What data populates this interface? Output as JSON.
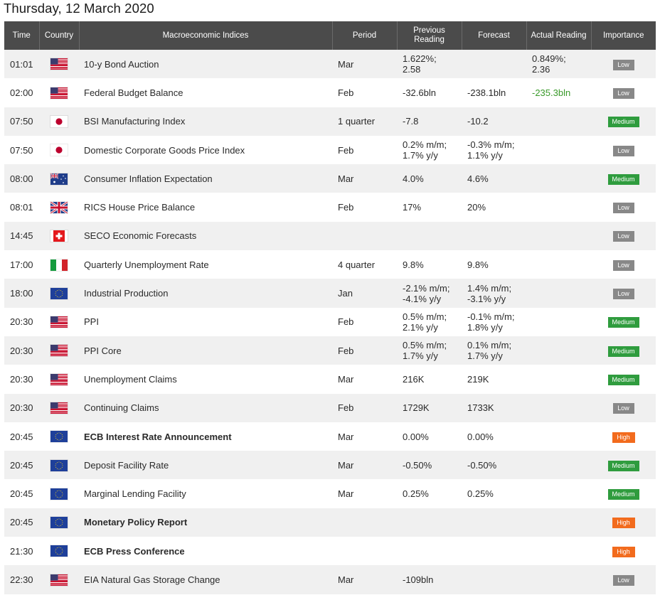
{
  "page": {
    "date_title": "Thursday, 12 March 2020"
  },
  "columns": {
    "time": "Time",
    "country": "Country",
    "indices": "Macroeconomic Indices",
    "period": "Period",
    "previous": "Previous Reading",
    "forecast": "Forecast",
    "actual": "Actual Reading",
    "importance": "Importance"
  },
  "colors": {
    "low": "#888888",
    "medium": "#2f9c3e",
    "high": "#f26b1d",
    "header": "#4b4b4b",
    "actual_positive": "#3a9a2a"
  },
  "rows": [
    {
      "time": "01:01",
      "flag": "us-flag-icon",
      "indicator": "10-y Bond Auction",
      "bold": false,
      "period": "Mar",
      "previous": "1.622%; 2.58",
      "forecast": "",
      "actual": "0.849%; 2.36",
      "actual_color": "",
      "importance": "Low"
    },
    {
      "time": "02:00",
      "flag": "us-flag-icon",
      "indicator": "Federal Budget Balance",
      "bold": false,
      "period": "Feb",
      "previous": "-32.6bln",
      "forecast": "-238.1bln",
      "actual": "-235.3bln",
      "actual_color": "green",
      "importance": "Low"
    },
    {
      "time": "07:50",
      "flag": "jp-flag-icon",
      "indicator": "BSI Manufacturing Index",
      "bold": false,
      "period": "1 quarter",
      "previous": "-7.8",
      "forecast": "-10.2",
      "actual": "",
      "actual_color": "",
      "importance": "Medium"
    },
    {
      "time": "07:50",
      "flag": "jp-flag-icon",
      "indicator": "Domestic Corporate Goods Price Index",
      "bold": false,
      "period": "Feb",
      "previous": "0.2% m/m; 1.7% y/y",
      "forecast": "-0.3% m/m; 1.1% y/y",
      "actual": "",
      "actual_color": "",
      "importance": "Low"
    },
    {
      "time": "08:00",
      "flag": "au-flag-icon",
      "indicator": "Consumer Inflation Expectation",
      "bold": false,
      "period": "Mar",
      "previous": "4.0%",
      "forecast": "4.6%",
      "actual": "",
      "actual_color": "",
      "importance": "Medium"
    },
    {
      "time": "08:01",
      "flag": "uk-flag-icon",
      "indicator": "RICS House Price Balance",
      "bold": false,
      "period": "Feb",
      "previous": "17%",
      "forecast": "20%",
      "actual": "",
      "actual_color": "",
      "importance": "Low"
    },
    {
      "time": "14:45",
      "flag": "ch-flag-icon",
      "indicator": "SECO Economic Forecasts",
      "bold": false,
      "period": "",
      "previous": "",
      "forecast": "",
      "actual": "",
      "actual_color": "",
      "importance": "Low"
    },
    {
      "time": "17:00",
      "flag": "it-flag-icon",
      "indicator": "Quarterly Unemployment Rate",
      "bold": false,
      "period": "4 quarter",
      "previous": "9.8%",
      "forecast": "9.8%",
      "actual": "",
      "actual_color": "",
      "importance": "Low"
    },
    {
      "time": "18:00",
      "flag": "eu-flag-icon",
      "indicator": "Industrial Production",
      "bold": false,
      "period": "Jan",
      "previous": "-2.1% m/m; -4.1% y/y",
      "forecast": "1.4% m/m; -3.1% y/y",
      "actual": "",
      "actual_color": "",
      "importance": "Low"
    },
    {
      "time": "20:30",
      "flag": "us-flag-icon",
      "indicator": "PPI",
      "bold": false,
      "period": "Feb",
      "previous": "0.5% m/m; 2.1% y/y",
      "forecast": "-0.1% m/m; 1.8% y/y",
      "actual": "",
      "actual_color": "",
      "importance": "Medium"
    },
    {
      "time": "20:30",
      "flag": "us-flag-icon",
      "indicator": "PPI Core",
      "bold": false,
      "period": "Feb",
      "previous": "0.5% m/m; 1.7% y/y",
      "forecast": "0.1% m/m; 1.7% y/y",
      "actual": "",
      "actual_color": "",
      "importance": "Medium"
    },
    {
      "time": "20:30",
      "flag": "us-flag-icon",
      "indicator": "Unemployment Claims",
      "bold": false,
      "period": "Mar",
      "previous": "216K",
      "forecast": "219K",
      "actual": "",
      "actual_color": "",
      "importance": "Medium"
    },
    {
      "time": "20:30",
      "flag": "us-flag-icon",
      "indicator": "Continuing Claims",
      "bold": false,
      "period": "Feb",
      "previous": "1729K",
      "forecast": "1733K",
      "actual": "",
      "actual_color": "",
      "importance": "Low"
    },
    {
      "time": "20:45",
      "flag": "eu-flag-icon",
      "indicator": "ECB Interest Rate Announcement",
      "bold": true,
      "period": "Mar",
      "previous": "0.00%",
      "forecast": "0.00%",
      "actual": "",
      "actual_color": "",
      "importance": "High"
    },
    {
      "time": "20:45",
      "flag": "eu-flag-icon",
      "indicator": "Deposit Facility Rate",
      "bold": false,
      "period": "Mar",
      "previous": "-0.50%",
      "forecast": "-0.50%",
      "actual": "",
      "actual_color": "",
      "importance": "Medium"
    },
    {
      "time": "20:45",
      "flag": "eu-flag-icon",
      "indicator": "Marginal Lending Facility",
      "bold": false,
      "period": "Mar",
      "previous": "0.25%",
      "forecast": "0.25%",
      "actual": "",
      "actual_color": "",
      "importance": "Medium"
    },
    {
      "time": "20:45",
      "flag": "eu-flag-icon",
      "indicator": "Monetary Policy Report",
      "bold": true,
      "period": "",
      "previous": "",
      "forecast": "",
      "actual": "",
      "actual_color": "",
      "importance": "High"
    },
    {
      "time": "21:30",
      "flag": "eu-flag-icon",
      "indicator": "ECB Press Conference",
      "bold": true,
      "period": "",
      "previous": "",
      "forecast": "",
      "actual": "",
      "actual_color": "",
      "importance": "High"
    },
    {
      "time": "22:30",
      "flag": "us-flag-icon",
      "indicator": "EIA Natural Gas Storage Change",
      "bold": false,
      "period": "Mar",
      "previous": "-109bln",
      "forecast": "",
      "actual": "",
      "actual_color": "",
      "importance": "Low"
    }
  ]
}
